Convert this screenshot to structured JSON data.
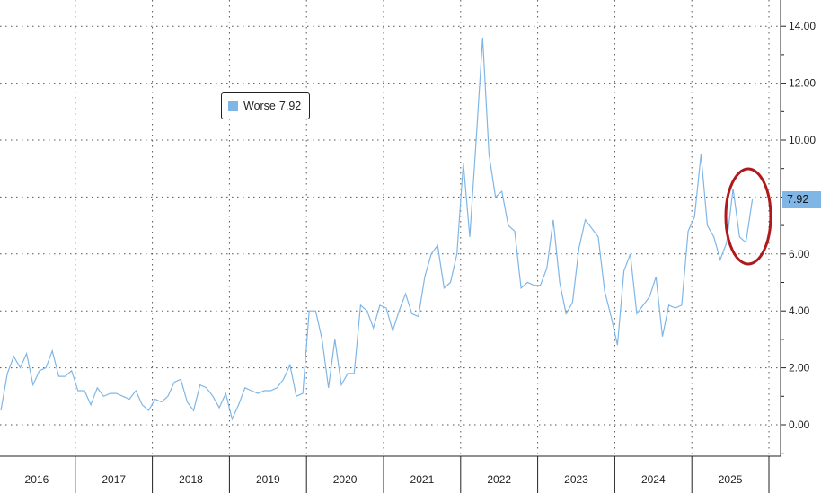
{
  "chart_data": {
    "type": "line",
    "series": [
      {
        "name": "Worse",
        "color": "#7fb6e6",
        "x": [
          "2016-01",
          "2016-02",
          "2016-03",
          "2016-04",
          "2016-05",
          "2016-06",
          "2016-07",
          "2016-08",
          "2016-09",
          "2016-10",
          "2016-11",
          "2016-12",
          "2017-01",
          "2017-02",
          "2017-03",
          "2017-04",
          "2017-05",
          "2017-06",
          "2017-07",
          "2017-08",
          "2017-09",
          "2017-10",
          "2017-11",
          "2017-12",
          "2018-01",
          "2018-02",
          "2018-03",
          "2018-04",
          "2018-05",
          "2018-06",
          "2018-07",
          "2018-08",
          "2018-09",
          "2018-10",
          "2018-11",
          "2018-12",
          "2019-01",
          "2019-02",
          "2019-03",
          "2019-04",
          "2019-05",
          "2019-06",
          "2019-07",
          "2019-08",
          "2019-09",
          "2019-10",
          "2019-11",
          "2019-12",
          "2020-01",
          "2020-02",
          "2020-03",
          "2020-04",
          "2020-05",
          "2020-06",
          "2020-07",
          "2020-08",
          "2020-09",
          "2020-10",
          "2020-11",
          "2020-12",
          "2021-01",
          "2021-02",
          "2021-03",
          "2021-04",
          "2021-05",
          "2021-06",
          "2021-07",
          "2021-08",
          "2021-09",
          "2021-10",
          "2021-11",
          "2021-12",
          "2022-01",
          "2022-02",
          "2022-03",
          "2022-04",
          "2022-05",
          "2022-06",
          "2022-07",
          "2022-08",
          "2022-09",
          "2022-10",
          "2022-11",
          "2022-12",
          "2023-01",
          "2023-02",
          "2023-03",
          "2023-04",
          "2023-05",
          "2023-06",
          "2023-07",
          "2023-08",
          "2023-09",
          "2023-10",
          "2023-11",
          "2023-12",
          "2024-01",
          "2024-02",
          "2024-03",
          "2024-04",
          "2024-05",
          "2024-06",
          "2024-07",
          "2024-08",
          "2024-09",
          "2024-10",
          "2024-11",
          "2024-12",
          "2025-01",
          "2025-02",
          "2025-03",
          "2025-04",
          "2025-05",
          "2025-06",
          "2025-07",
          "2025-08",
          "2025-09",
          "2025-10"
        ],
        "values": [
          0.5,
          1.8,
          2.4,
          2.0,
          2.5,
          1.4,
          1.9,
          2.0,
          2.6,
          1.7,
          1.7,
          1.9,
          1.2,
          1.2,
          0.7,
          1.3,
          1.0,
          1.1,
          1.1,
          1.0,
          0.9,
          1.2,
          0.7,
          0.5,
          0.9,
          0.8,
          1.0,
          1.5,
          1.6,
          0.8,
          0.5,
          1.4,
          1.3,
          1.0,
          0.6,
          1.1,
          0.2,
          0.7,
          1.3,
          1.2,
          1.1,
          1.2,
          1.2,
          1.3,
          1.6,
          2.1,
          1.0,
          1.1,
          4.0,
          4.0,
          3.0,
          1.3,
          3.0,
          1.4,
          1.8,
          1.8,
          4.2,
          4.0,
          3.4,
          4.2,
          4.1,
          3.3,
          4.0,
          4.6,
          3.9,
          3.8,
          5.2,
          6.0,
          6.3,
          4.8,
          5.0,
          6.0,
          9.2,
          6.6,
          10.0,
          13.6,
          9.5,
          8.0,
          8.2,
          7.0,
          6.8,
          4.8,
          5.0,
          4.9,
          4.9,
          5.5,
          7.2,
          5.0,
          3.9,
          4.3,
          6.2,
          7.2,
          6.9,
          6.6,
          4.7,
          3.8,
          2.8,
          5.4,
          6.0,
          3.9,
          4.2,
          4.5,
          5.2,
          3.1,
          4.2,
          4.1,
          4.2,
          6.8,
          7.3,
          9.5,
          7.0,
          6.6,
          5.8,
          6.4,
          8.3,
          6.6,
          6.4,
          7.92
        ]
      }
    ],
    "ylim": [
      -1.0,
      15.0
    ],
    "yticks": [
      "0.00",
      "2.00",
      "4.00",
      "6.00",
      "8.00",
      "10.00",
      "12.00",
      "14.00"
    ],
    "xtick_labels": [
      "2016",
      "2017",
      "2018",
      "2019",
      "2020",
      "2021",
      "2022",
      "2023",
      "2024",
      "2025"
    ],
    "y_axis_side": "right",
    "grid": true,
    "legend": {
      "label": "Worse",
      "value": "7.92",
      "placement": "top-left"
    },
    "last_value_tag": "7.92",
    "annotation": {
      "type": "ellipse",
      "color": "#b0191b",
      "around": "2025-06 to 2025-10"
    }
  }
}
